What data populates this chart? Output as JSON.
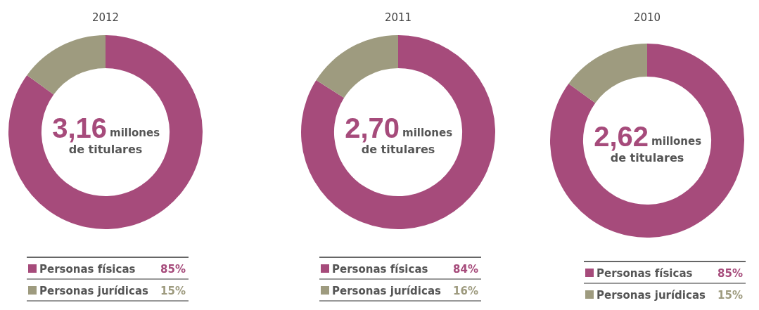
{
  "chart_data": [
    {
      "type": "donut",
      "title": "2012",
      "categories": [
        "Personas físicas",
        "Personas jurídicas"
      ],
      "values": [
        85,
        15
      ],
      "colors": [
        "#a64b7b",
        "#9e9b7f"
      ],
      "value_labels": [
        "85%",
        "15%"
      ],
      "legend": "bottom",
      "annotations": [
        "3,16",
        "millones",
        "de titulares"
      ]
    },
    {
      "type": "donut",
      "title": "2011",
      "categories": [
        "Personas físicas",
        "Personas jurídicas"
      ],
      "values": [
        84,
        16
      ],
      "colors": [
        "#a64b7b",
        "#9e9b7f"
      ],
      "value_labels": [
        "84%",
        "16%"
      ],
      "legend": "bottom",
      "annotations": [
        "2,70",
        "millones",
        "de titulares"
      ]
    },
    {
      "type": "donut",
      "title": "2010",
      "categories": [
        "Personas físicas",
        "Personas jurídicas"
      ],
      "values": [
        85,
        15
      ],
      "colors": [
        "#a64b7b",
        "#9e9b7f"
      ],
      "value_labels": [
        "85%",
        "15%"
      ],
      "legend": "bottom",
      "annotations": [
        "2,62",
        "millones",
        "de titulares"
      ]
    }
  ]
}
